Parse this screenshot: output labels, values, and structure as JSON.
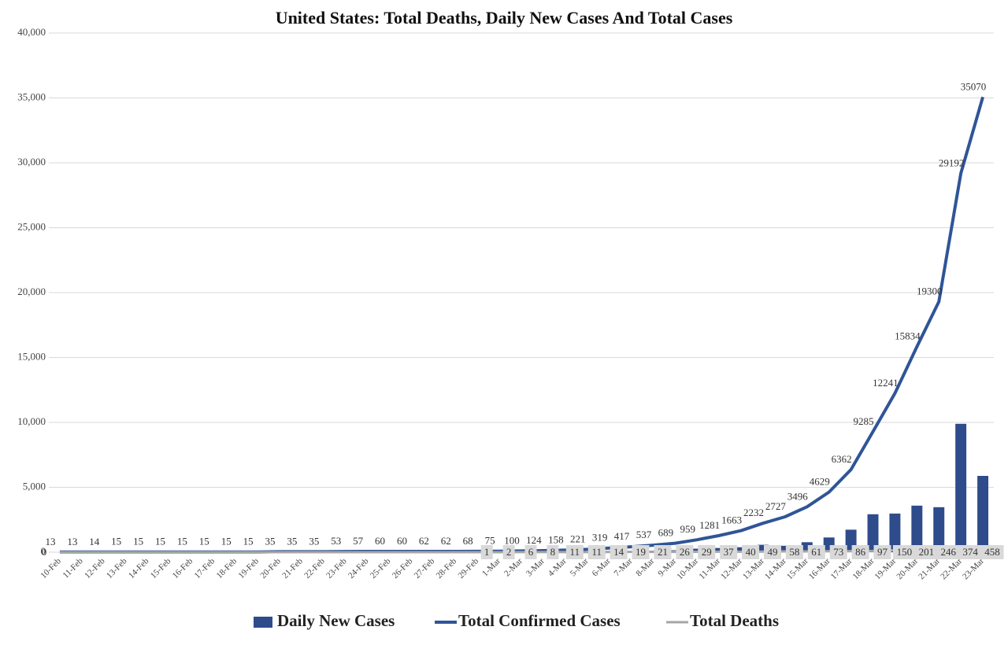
{
  "chart_data": {
    "type": "bar-line",
    "title": "United States: Total Deaths, Daily New Cases And Total Cases",
    "categories": [
      "10-Feb",
      "11-Feb",
      "12-Feb",
      "13-Feb",
      "14-Feb",
      "15-Feb",
      "16-Feb",
      "17-Feb",
      "18-Feb",
      "19-Feb",
      "20-Feb",
      "21-Feb",
      "22-Feb",
      "23-Feb",
      "24-Feb",
      "25-Feb",
      "26-Feb",
      "27-Feb",
      "28-Feb",
      "29-Feb",
      "1-Mar",
      "2-Mar",
      "3-Mar",
      "4-Mar",
      "5-Mar",
      "6-Mar",
      "7-Mar",
      "8-Mar",
      "9-Mar",
      "10-Mar",
      "11-Mar",
      "12-Mar",
      "13-Mar",
      "14-Mar",
      "15-Mar",
      "16-Mar",
      "17-Mar",
      "18-Mar",
      "19-Mar",
      "20-Mar",
      "21-Mar",
      "22-Mar",
      "23-Mar"
    ],
    "series": [
      {
        "name": "Daily New Cases",
        "type": "bar",
        "color": "#2e4b8c",
        "values": [
          0,
          0,
          1,
          1,
          0,
          0,
          0,
          0,
          0,
          0,
          20,
          0,
          0,
          18,
          4,
          3,
          0,
          2,
          0,
          6,
          7,
          25,
          24,
          34,
          63,
          98,
          98,
          120,
          152,
          270,
          322,
          382,
          569,
          495,
          769,
          1133,
          1733,
          2923,
          2976,
          3586,
          3466,
          9892,
          5878
        ]
      },
      {
        "name": "Total Confirmed Cases",
        "type": "line",
        "color": "#2f5597",
        "values": [
          13,
          13,
          14,
          15,
          15,
          15,
          15,
          15,
          15,
          15,
          35,
          35,
          35,
          53,
          57,
          60,
          60,
          62,
          62,
          68,
          75,
          100,
          124,
          158,
          221,
          319,
          417,
          537,
          689,
          959,
          1281,
          1663,
          2232,
          2727,
          3496,
          4629,
          6362,
          9285,
          12241,
          15834,
          19300,
          29192,
          35070
        ]
      },
      {
        "name": "Total Deaths",
        "type": "line",
        "color": "#a6a6a6",
        "values": [
          0,
          0,
          0,
          0,
          0,
          0,
          0,
          0,
          0,
          0,
          0,
          0,
          0,
          0,
          0,
          0,
          0,
          0,
          0,
          1,
          2,
          6,
          8,
          11,
          11,
          14,
          19,
          21,
          26,
          29,
          37,
          40,
          49,
          58,
          61,
          73,
          86,
          97,
          150,
          201,
          246,
          374,
          458
        ]
      }
    ],
    "ylim": [
      0,
      40000
    ],
    "yticks": [
      0,
      {
        "value": 5000,
        "label": "5,000"
      },
      {
        "value": 10000,
        "label": "10,000"
      },
      {
        "value": 15000,
        "label": "15,000"
      },
      {
        "value": 20000,
        "label": "20,000"
      },
      {
        "value": 25000,
        "label": "25,000"
      },
      {
        "value": 30000,
        "label": "30,000"
      },
      {
        "value": 35000,
        "label": "35,000"
      },
      {
        "value": 40000,
        "label": "40,000"
      }
    ],
    "grid": true,
    "legend": "bottom"
  }
}
